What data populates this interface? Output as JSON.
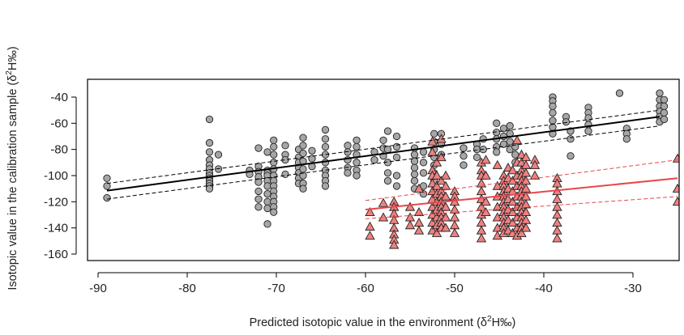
{
  "chart_data": {
    "type": "scatter",
    "xlabel_prefix": "Predicted isotopic value in the environment (δ",
    "xlabel_sup": "2",
    "xlabel_suffix": "H‰)",
    "ylabel_prefix": "Isotopic value in the calibration sample (δ",
    "ylabel_sup": "2",
    "ylabel_suffix": "H‰)",
    "xlim": [
      -91,
      -24
    ],
    "ylim": [
      -165,
      -30
    ],
    "x_ticks": [
      -90,
      -80,
      -70,
      -60,
      -50,
      -40,
      -30
    ],
    "y_ticks": [
      -160,
      -140,
      -120,
      -100,
      -80,
      -60,
      -40
    ],
    "grid": false,
    "colors": {
      "grey_fill": "#a6a6a6",
      "grey_line": "#000000",
      "red_fill": "#f08080",
      "red_line": "#e8474a"
    },
    "series": [
      {
        "marker": "circle",
        "groups": [
          {
            "x": -89,
            "y": [
              -102,
              -108,
              -117
            ]
          },
          {
            "x": -77.5,
            "y": [
              -57,
              -75,
              -82,
              -88,
              -92,
              -95,
              -98,
              -100,
              -102,
              -104,
              -106,
              -108,
              -110
            ]
          },
          {
            "x": -76.5,
            "y": [
              -84,
              -95
            ]
          },
          {
            "x": -73,
            "y": [
              -96,
              -99
            ]
          },
          {
            "x": -72,
            "y": [
              -79,
              -93,
              -97,
              -101,
              -105,
              -112,
              -118,
              -124
            ]
          },
          {
            "x": -71,
            "y": [
              -82,
              -96,
              -98,
              -100,
              -104,
              -108,
              -114,
              -120,
              -125,
              -137
            ]
          },
          {
            "x": -70.3,
            "y": [
              -73,
              -78,
              -84,
              -90,
              -95,
              -100,
              -104,
              -108,
              -112,
              -116,
              -120,
              -124,
              -128
            ]
          },
          {
            "x": -69,
            "y": [
              -77,
              -84,
              -88,
              -99
            ]
          },
          {
            "x": -67.5,
            "y": [
              -80,
              -86,
              -90,
              -94,
              -98,
              -102,
              -106
            ]
          },
          {
            "x": -67,
            "y": [
              -71,
              -77,
              -83,
              -89,
              -95,
              -100,
              -106,
              -110
            ]
          },
          {
            "x": -66,
            "y": [
              -81,
              -87,
              -93
            ]
          },
          {
            "x": -64.5,
            "y": [
              -65,
              -72,
              -78,
              -84,
              -90,
              -96,
              -100,
              -104,
              -108
            ]
          },
          {
            "x": -62,
            "y": [
              -77,
              -82,
              -88,
              -94,
              -98
            ]
          },
          {
            "x": -61,
            "y": [
              -73,
              -78,
              -84,
              -90,
              -96,
              -100
            ]
          },
          {
            "x": -59,
            "y": [
              -82,
              -88
            ]
          },
          {
            "x": -58,
            "y": [
              -73,
              -79,
              -85
            ]
          },
          {
            "x": -57.5,
            "y": [
              -66,
              -80,
              -90,
              -98,
              -104
            ]
          },
          {
            "x": -56.5,
            "y": [
              -70,
              -78,
              -86,
              -100,
              -108
            ]
          },
          {
            "x": -54.5,
            "y": [
              -79,
              -84,
              -89,
              -94,
              -99,
              -104,
              -110
            ]
          },
          {
            "x": -53.5,
            "y": [
              -82,
              -90,
              -98,
              -108,
              -114
            ]
          },
          {
            "x": -52.3,
            "y": [
              -68,
              -74,
              -80,
              -86,
              -92,
              -98,
              -104
            ]
          },
          {
            "x": -51.5,
            "y": [
              -68,
              -76,
              -84
            ]
          },
          {
            "x": -49,
            "y": [
              -79,
              -85,
              -92
            ]
          },
          {
            "x": -47.5,
            "y": [
              -76,
              -80,
              -86
            ]
          },
          {
            "x": -46.8,
            "y": [
              -72,
              -80
            ]
          },
          {
            "x": -45.3,
            "y": [
              -60,
              -67,
              -72,
              -78,
              -82
            ]
          },
          {
            "x": -44.5,
            "y": [
              -64,
              -70,
              -76
            ]
          },
          {
            "x": -43.8,
            "y": [
              -62,
              -68,
              -74,
              -80
            ]
          },
          {
            "x": -43.2,
            "y": [
              -78,
              -84,
              -90
            ]
          },
          {
            "x": -39,
            "y": [
              -40,
              -43,
              -47,
              -52,
              -58,
              -63,
              -68
            ]
          },
          {
            "x": -37.5,
            "y": [
              -55,
              -59
            ]
          },
          {
            "x": -37,
            "y": [
              -66,
              -72,
              -85
            ]
          },
          {
            "x": -35,
            "y": [
              -48,
              -52,
              -56,
              -61,
              -66
            ]
          },
          {
            "x": -31.5,
            "y": [
              -37
            ]
          },
          {
            "x": -30.7,
            "y": [
              -64,
              -68,
              -72
            ]
          },
          {
            "x": -27,
            "y": [
              -37,
              -42,
              -47,
              -51,
              -55,
              -59
            ]
          },
          {
            "x": -26.5,
            "y": [
              -42,
              -47,
              -52,
              -57
            ]
          }
        ],
        "fit": {
          "x": [
            -89,
            -27
          ],
          "y": [
            -111.5,
            -55
          ],
          "ci_upper": [
            -106,
            -50
          ],
          "ci_lower": [
            -118,
            -62
          ]
        }
      },
      {
        "marker": "triangle",
        "groups": [
          {
            "x": -59.5,
            "y": [
              -128,
              -139,
              -146
            ]
          },
          {
            "x": -58,
            "y": [
              -121,
              -132
            ]
          },
          {
            "x": -56.8,
            "y": [
              -120,
              -124,
              -129,
              -134,
              -140,
              -145,
              -149,
              -153
            ]
          },
          {
            "x": -55,
            "y": [
              -124,
              -132,
              -138
            ]
          },
          {
            "x": -54,
            "y": [
              -110,
              -128,
              -136,
              -142
            ]
          },
          {
            "x": -52.5,
            "y": [
              -74,
              -82,
              -96,
              -100,
              -106,
              -112,
              -118,
              -124,
              -130,
              -136,
              -142
            ]
          },
          {
            "x": -52,
            "y": [
              -90,
              -100,
              -108,
              -114,
              -120,
              -126,
              -132,
              -138,
              -144
            ]
          },
          {
            "x": -51.5,
            "y": [
              -72,
              -86,
              -104,
              -112,
              -116,
              -120,
              -124,
              -128,
              -132,
              -136,
              -140
            ]
          },
          {
            "x": -51,
            "y": [
              -100,
              -108,
              -116,
              -124,
              -132,
              -140
            ]
          },
          {
            "x": -50,
            "y": [
              -112,
              -116,
              -120,
              -126,
              -132,
              -138,
              -144
            ]
          },
          {
            "x": -47,
            "y": [
              -90,
              -96,
              -100,
              -106,
              -112,
              -118,
              -124,
              -130,
              -136,
              -142,
              -148
            ]
          },
          {
            "x": -46.5,
            "y": [
              -88,
              -100,
              -120,
              -128
            ]
          },
          {
            "x": -45.2,
            "y": [
              -92,
              -108,
              -116,
              -124,
              -132,
              -140,
              -146
            ]
          },
          {
            "x": -44.5,
            "y": [
              -100,
              -104,
              -108,
              -112,
              -116,
              -120,
              -124,
              -128,
              -132,
              -136,
              -140,
              -144
            ]
          },
          {
            "x": -44,
            "y": [
              -94,
              -102,
              -110,
              -118,
              -126,
              -134,
              -142
            ]
          },
          {
            "x": -43.5,
            "y": [
              -96,
              -104,
              -112,
              -120,
              -128,
              -136,
              -144
            ]
          },
          {
            "x": -43,
            "y": [
              -73,
              -90,
              -100,
              -108,
              -116,
              -124,
              -132,
              -140,
              -146
            ]
          },
          {
            "x": -42.5,
            "y": [
              -84,
              -90,
              -96,
              -100,
              -104,
              -108,
              -112,
              -116,
              -120,
              -124,
              -128,
              -132,
              -136,
              -140,
              -144
            ]
          },
          {
            "x": -42,
            "y": [
              -86,
              -92,
              -98,
              -104,
              -110,
              -116,
              -122,
              -128,
              -134,
              -140
            ]
          },
          {
            "x": -41,
            "y": [
              -88,
              -92,
              -100
            ]
          },
          {
            "x": -38.5,
            "y": [
              -102,
              -106,
              -112,
              -118,
              -124,
              -130,
              -136,
              -142,
              -148
            ]
          },
          {
            "x": -25,
            "y": [
              -87,
              -110,
              -120
            ]
          }
        ],
        "fit": {
          "x": [
            -60,
            -25
          ],
          "y": [
            -126,
            -102
          ],
          "ci_upper": [
            -119,
            -88
          ],
          "ci_lower": [
            -133,
            -116
          ]
        }
      }
    ]
  }
}
